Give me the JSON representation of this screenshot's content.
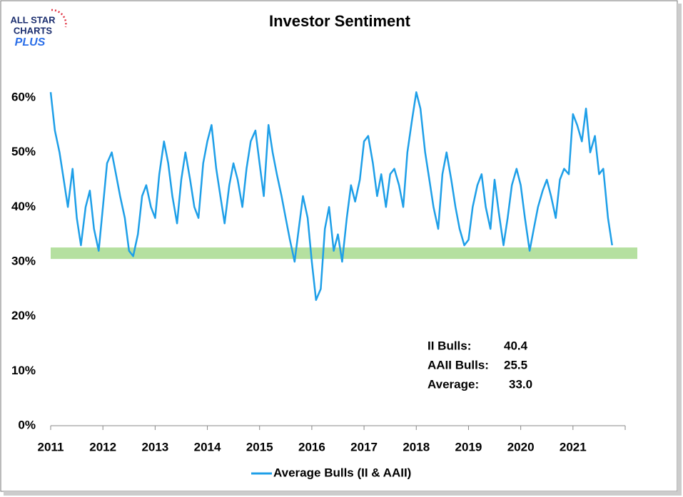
{
  "chart_data": {
    "type": "line",
    "title": "Investor Sentiment",
    "logo": [
      "ALL STAR",
      "CHARTS",
      "PLUS"
    ],
    "x": [
      2011.0,
      2011.08,
      2011.17,
      2011.25,
      2011.33,
      2011.42,
      2011.5,
      2011.58,
      2011.67,
      2011.75,
      2011.83,
      2011.92,
      2012.0,
      2012.08,
      2012.17,
      2012.25,
      2012.33,
      2012.42,
      2012.5,
      2012.58,
      2012.67,
      2012.75,
      2012.83,
      2012.92,
      2013.0,
      2013.08,
      2013.17,
      2013.25,
      2013.33,
      2013.42,
      2013.5,
      2013.58,
      2013.67,
      2013.75,
      2013.83,
      2013.92,
      2014.0,
      2014.08,
      2014.17,
      2014.25,
      2014.33,
      2014.42,
      2014.5,
      2014.58,
      2014.67,
      2014.75,
      2014.83,
      2014.92,
      2015.0,
      2015.08,
      2015.17,
      2015.25,
      2015.33,
      2015.42,
      2015.5,
      2015.58,
      2015.67,
      2015.75,
      2015.83,
      2015.92,
      2016.0,
      2016.08,
      2016.17,
      2016.25,
      2016.33,
      2016.42,
      2016.5,
      2016.58,
      2016.67,
      2016.75,
      2016.83,
      2016.92,
      2017.0,
      2017.08,
      2017.17,
      2017.25,
      2017.33,
      2017.42,
      2017.5,
      2017.58,
      2017.67,
      2017.75,
      2017.83,
      2017.92,
      2018.0,
      2018.08,
      2018.17,
      2018.25,
      2018.33,
      2018.42,
      2018.5,
      2018.58,
      2018.67,
      2018.75,
      2018.83,
      2018.92,
      2019.0,
      2019.08,
      2019.17,
      2019.25,
      2019.33,
      2019.42,
      2019.5,
      2019.58,
      2019.67,
      2019.75,
      2019.83,
      2019.92,
      2020.0,
      2020.08,
      2020.17,
      2020.25,
      2020.33,
      2020.42,
      2020.5,
      2020.58,
      2020.67,
      2020.75,
      2020.83,
      2020.92,
      2021.0,
      2021.08,
      2021.17,
      2021.25,
      2021.33,
      2021.42,
      2021.5,
      2021.58,
      2021.67,
      2021.75
    ],
    "series": [
      {
        "name": "Average Bulls (II & AAII)",
        "color": "#1e9fe8",
        "values": [
          61,
          54,
          50,
          45,
          40,
          47,
          38,
          33,
          40,
          43,
          36,
          32,
          40,
          48,
          50,
          46,
          42,
          38,
          32,
          31,
          35,
          42,
          44,
          40,
          38,
          46,
          52,
          48,
          42,
          37,
          45,
          50,
          45,
          40,
          38,
          48,
          52,
          55,
          47,
          42,
          37,
          44,
          48,
          45,
          40,
          47,
          52,
          54,
          48,
          42,
          55,
          50,
          46,
          42,
          38,
          34,
          30,
          36,
          42,
          38,
          30,
          23,
          25,
          36,
          40,
          32,
          35,
          30,
          38,
          44,
          41,
          45,
          52,
          53,
          48,
          42,
          46,
          40,
          46,
          47,
          44,
          40,
          50,
          56,
          61,
          58,
          50,
          45,
          40,
          36,
          46,
          50,
          45,
          40,
          36,
          33,
          34,
          40,
          44,
          46,
          40,
          36,
          45,
          39,
          33,
          38,
          44,
          47,
          44,
          38,
          32,
          36,
          40,
          43,
          45,
          42,
          38,
          45,
          47,
          46,
          57,
          55,
          52,
          58,
          50,
          53,
          46,
          47,
          38,
          33
        ]
      }
    ],
    "band": [
      30.5,
      32.6
    ],
    "band_color": "#b5e0a0",
    "xlim": [
      2011,
      2022
    ],
    "xticks": [
      2011,
      2012,
      2013,
      2014,
      2015,
      2016,
      2017,
      2018,
      2019,
      2020,
      2021
    ],
    "ylim": [
      0,
      65
    ],
    "yticks": [
      {
        "value": 0,
        "label": "0%"
      },
      {
        "value": 10,
        "label": "10%"
      },
      {
        "value": 20,
        "label": "20%"
      },
      {
        "value": 30,
        "label": "30%"
      },
      {
        "value": 40,
        "label": "40%"
      },
      {
        "value": 50,
        "label": "50%"
      },
      {
        "value": 60,
        "label": "60%"
      }
    ],
    "annotations": [
      {
        "label": "II Bulls:",
        "value": "40.4"
      },
      {
        "label": "AAII Bulls:",
        "value": "25.5"
      },
      {
        "label": "Average:",
        "value": "33.0"
      }
    ],
    "legend": "bottom"
  }
}
